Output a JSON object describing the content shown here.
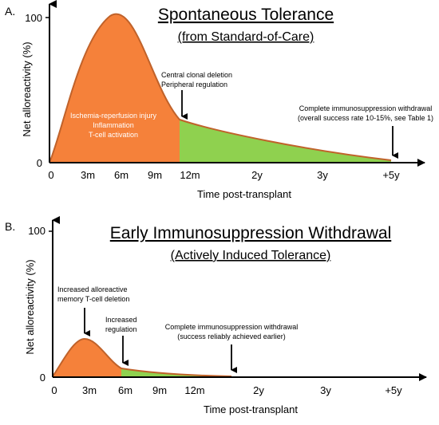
{
  "colors": {
    "orange": "#f5813a",
    "green": "#8fd14f",
    "curve": "#c0622a",
    "text": "#000000",
    "white_text": "#ffffff"
  },
  "panel_a": {
    "label": "A.",
    "title": "Spontaneous Tolerance",
    "subtitle": "(from Standard-of-Care)",
    "ylabel": "Net alloreactivity (%)",
    "xlabel": "Time post-transplant",
    "ytick_top": "100",
    "ytick_bottom": "0",
    "xticks": [
      "0",
      "3m",
      "6m",
      "9m",
      "12m",
      "2y",
      "3y",
      "+5y"
    ],
    "annot_central_1": "Central clonal deletion",
    "annot_central_2": "Peripheral regulation",
    "annot_complete_1": "Complete immunosuppression withdrawal",
    "annot_complete_2": "(overall success rate 10-15%, see Table 1)",
    "inner_1": "Ischemia-reperfusion injury",
    "inner_2": "Inflammation",
    "inner_3": "T-cell activation"
  },
  "panel_b": {
    "label": "B.",
    "title": "Early Immunosuppression  Withdrawal",
    "subtitle": "(Actively Induced Tolerance)",
    "ylabel": "Net alloreactivity (%)",
    "xlabel": "Time post-transplant",
    "ytick_top": "100",
    "ytick_bottom": "0",
    "xticks": [
      "0",
      "3m",
      "6m",
      "9m",
      "12m",
      "2y",
      "3y",
      "+5y"
    ],
    "annot_memory_1": "Increased alloreactive",
    "annot_memory_2": "memory  T-cell deletion",
    "annot_reg_1": "Increased",
    "annot_reg_2": "regulation",
    "annot_complete_1": "Complete immunosuppression withdrawal",
    "annot_complete_2": "(success reliably achieved earlier)"
  }
}
